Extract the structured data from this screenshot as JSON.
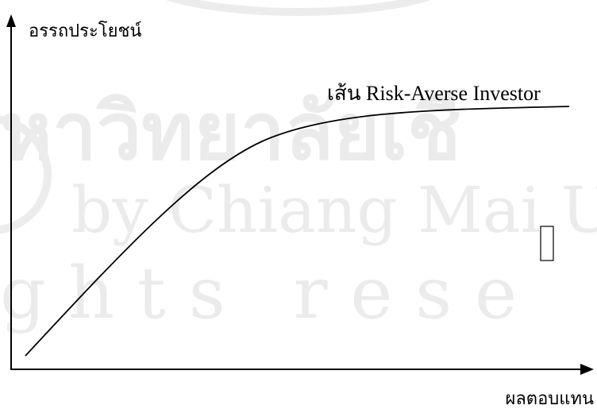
{
  "diagram": {
    "y_axis_label": "อรรถประโยชน์",
    "x_axis_label": "ผลตอบแทน",
    "curve_label": "เส้น Risk-Averse Investor",
    "colors": {
      "line": "#000000",
      "watermark": "#ebebeb"
    }
  },
  "watermark": {
    "line1": "หาวิทยาลัยเชี",
    "line2": "by Chiang Mai U",
    "line3": "g h t s   r e s e"
  }
}
